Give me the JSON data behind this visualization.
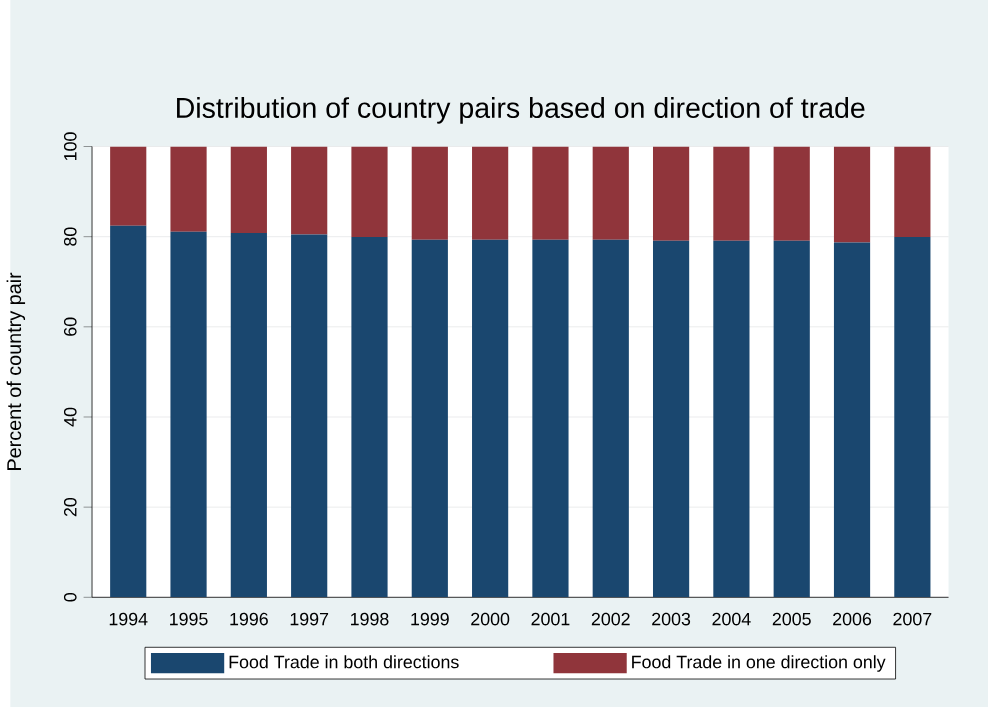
{
  "chart_data": {
    "type": "bar",
    "title": "Distribution of country pairs based on direction of trade",
    "ylabel": "Percent of country pair",
    "categories": [
      "1994",
      "1995",
      "1996",
      "1997",
      "1998",
      "1999",
      "2000",
      "2001",
      "2002",
      "2003",
      "2004",
      "2005",
      "2006",
      "2007"
    ],
    "stacked": true,
    "series": [
      {
        "name": "Food Trade in both directions",
        "color": "#1a476f",
        "values": [
          82.4,
          81.1,
          80.8,
          80.5,
          79.9,
          79.3,
          79.3,
          79.3,
          79.3,
          79.1,
          79.1,
          79.1,
          78.7,
          79.9
        ]
      },
      {
        "name": "Food Trade in one direction only",
        "color": "#90353b",
        "values": [
          17.6,
          18.9,
          19.2,
          19.5,
          20.1,
          20.7,
          20.7,
          20.7,
          20.7,
          20.9,
          20.9,
          20.9,
          21.3,
          20.1
        ]
      }
    ],
    "ylim": [
      0,
      100
    ],
    "yticks": [
      0,
      20,
      40,
      60,
      80,
      100
    ],
    "grid": "y",
    "legend": "bottom"
  }
}
